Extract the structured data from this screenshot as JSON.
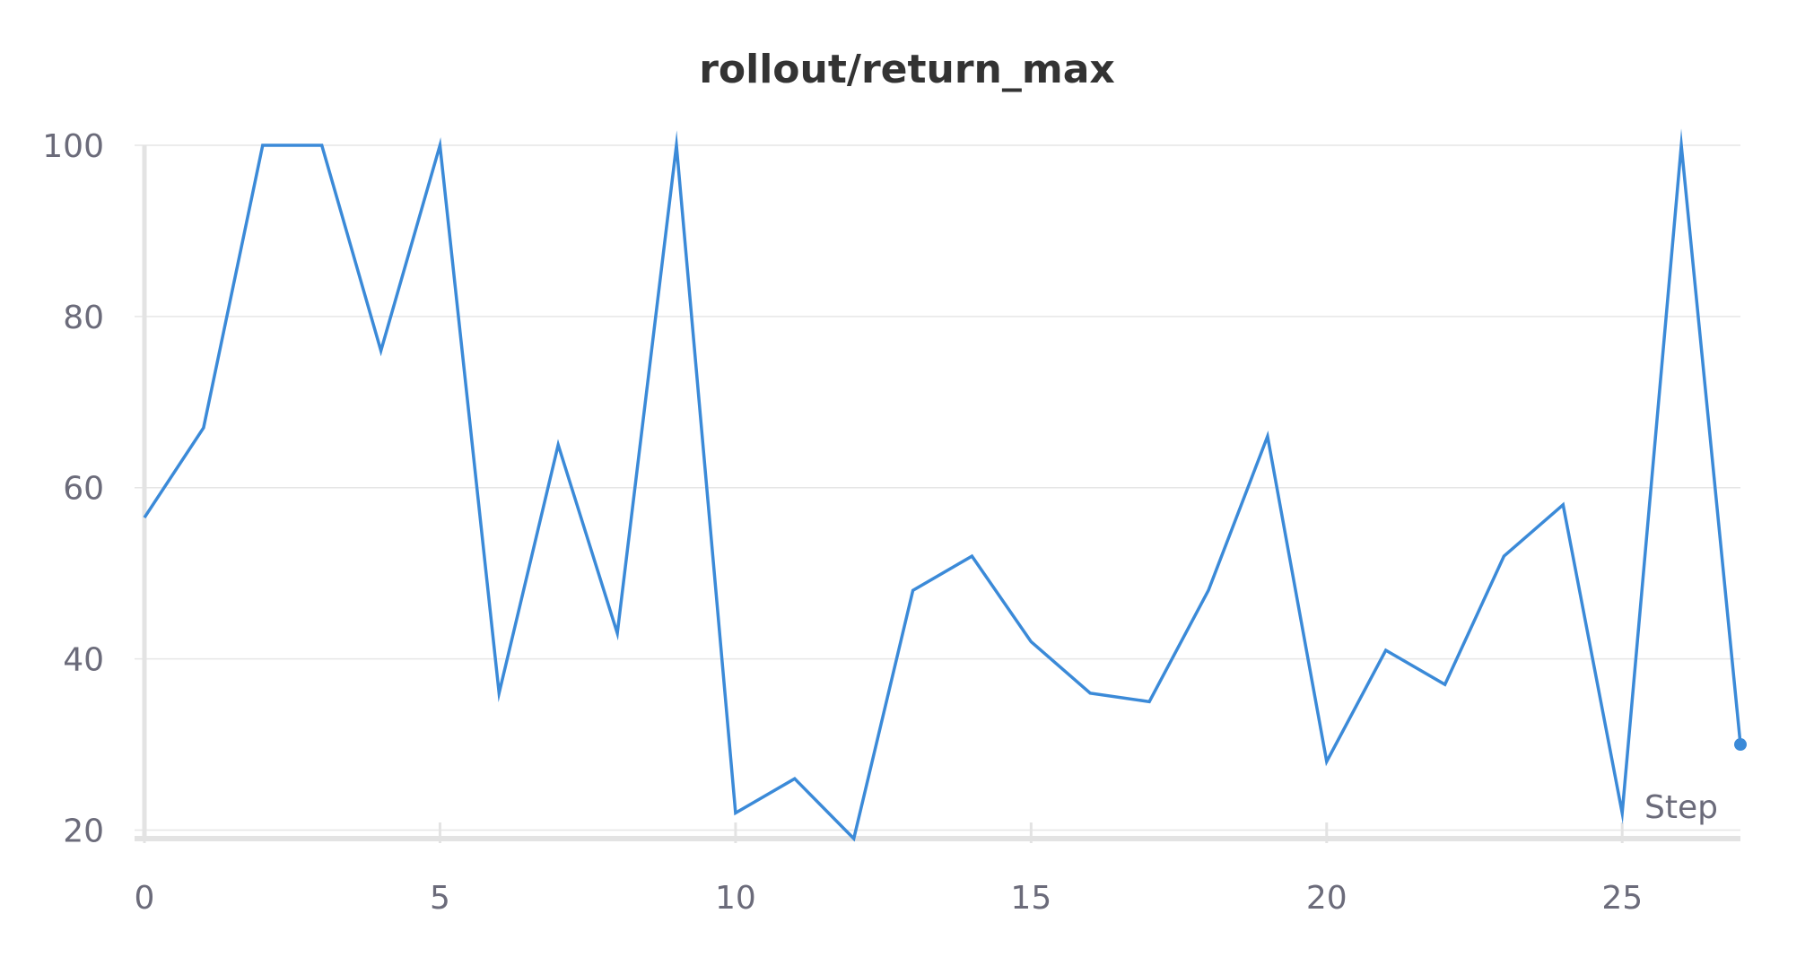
{
  "chart_data": {
    "type": "line",
    "title": "rollout/return_max",
    "xlabel": "Step",
    "ylabel": "",
    "xlim": [
      0,
      27
    ],
    "ylim": [
      19,
      100
    ],
    "x_ticks": [
      0,
      5,
      10,
      15,
      20,
      25
    ],
    "y_ticks": [
      20,
      40,
      60,
      80,
      100
    ],
    "grid": true,
    "legend": "none",
    "series": [
      {
        "color": "#3b8ad8",
        "x": [
          0,
          1,
          2,
          3,
          4,
          5,
          6,
          7,
          8,
          9,
          10,
          11,
          12,
          13,
          14,
          15,
          16,
          17,
          18,
          19,
          20,
          21,
          22,
          23,
          24,
          25,
          26,
          27
        ],
        "values": [
          56.5,
          67,
          100,
          100,
          76,
          100,
          36,
          65,
          43,
          100,
          22,
          26,
          19,
          48,
          52,
          42,
          36,
          35,
          48,
          66,
          28,
          41,
          37,
          52,
          58,
          22,
          100,
          30
        ]
      }
    ]
  }
}
